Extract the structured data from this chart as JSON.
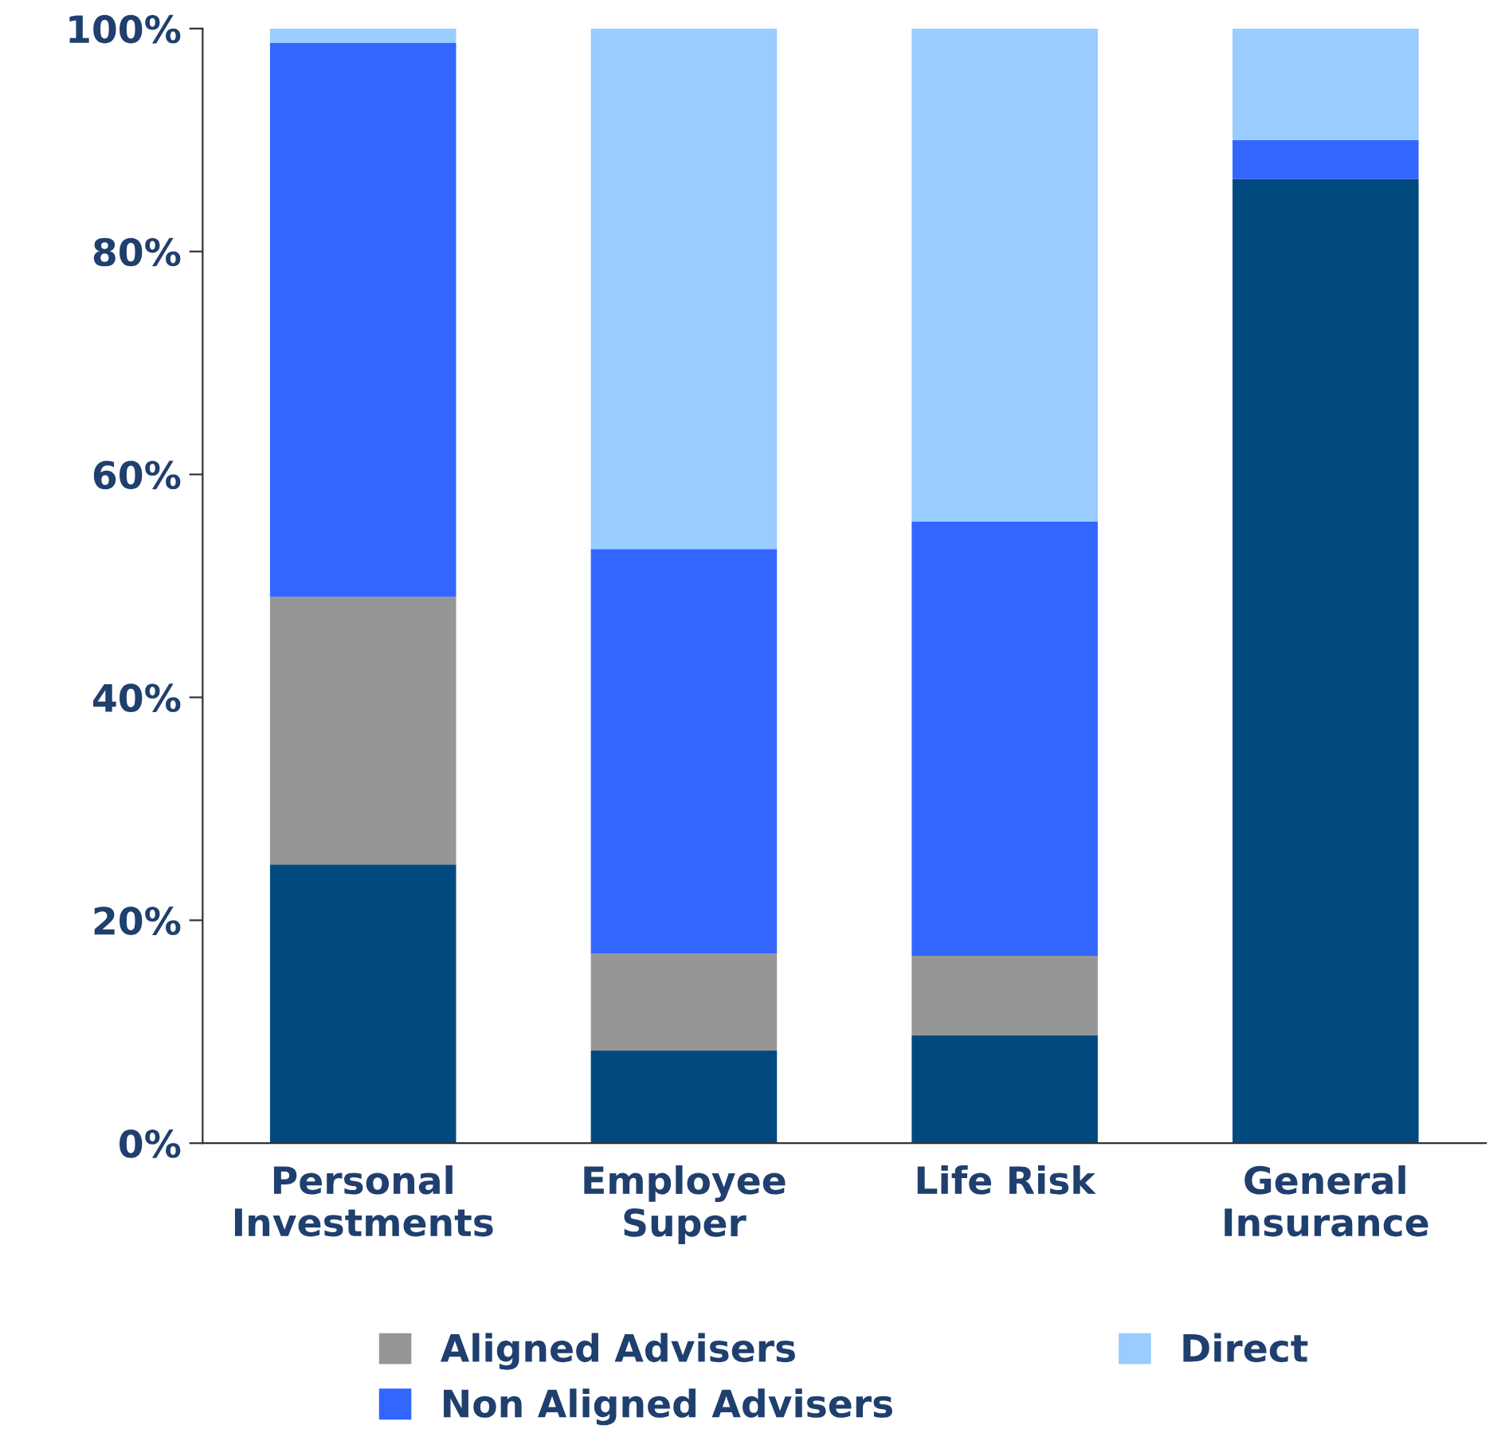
{
  "chart_data": {
    "type": "bar",
    "stacked": true,
    "categories": [
      "Personal\nInvestments",
      "Employee\nSuper",
      "Life Risk",
      "General\nInsurance"
    ],
    "series": [
      {
        "color": "#004a80",
        "values": [
          25,
          8.3,
          9.7,
          86.5
        ]
      },
      {
        "name": "Aligned Advisers",
        "color": "#969696",
        "values": [
          24,
          8.7,
          7.1,
          0
        ]
      },
      {
        "name": "Non Aligned Advisers",
        "color": "#3366ff",
        "values": [
          49.7,
          36.3,
          39,
          3.5
        ]
      },
      {
        "name": "Direct",
        "color": "#99ccff",
        "values": [
          1.3,
          46.7,
          44.2,
          10
        ]
      }
    ],
    "ylim": [
      0,
      100
    ],
    "yticks": [
      {
        "value": 0,
        "label": "0%"
      },
      {
        "value": 20,
        "label": "20%"
      },
      {
        "value": 40,
        "label": "40%"
      },
      {
        "value": 60,
        "label": "60%"
      },
      {
        "value": 80,
        "label": "80%"
      },
      {
        "value": 100,
        "label": "100%"
      }
    ],
    "grid": false,
    "legend": "bottom"
  }
}
